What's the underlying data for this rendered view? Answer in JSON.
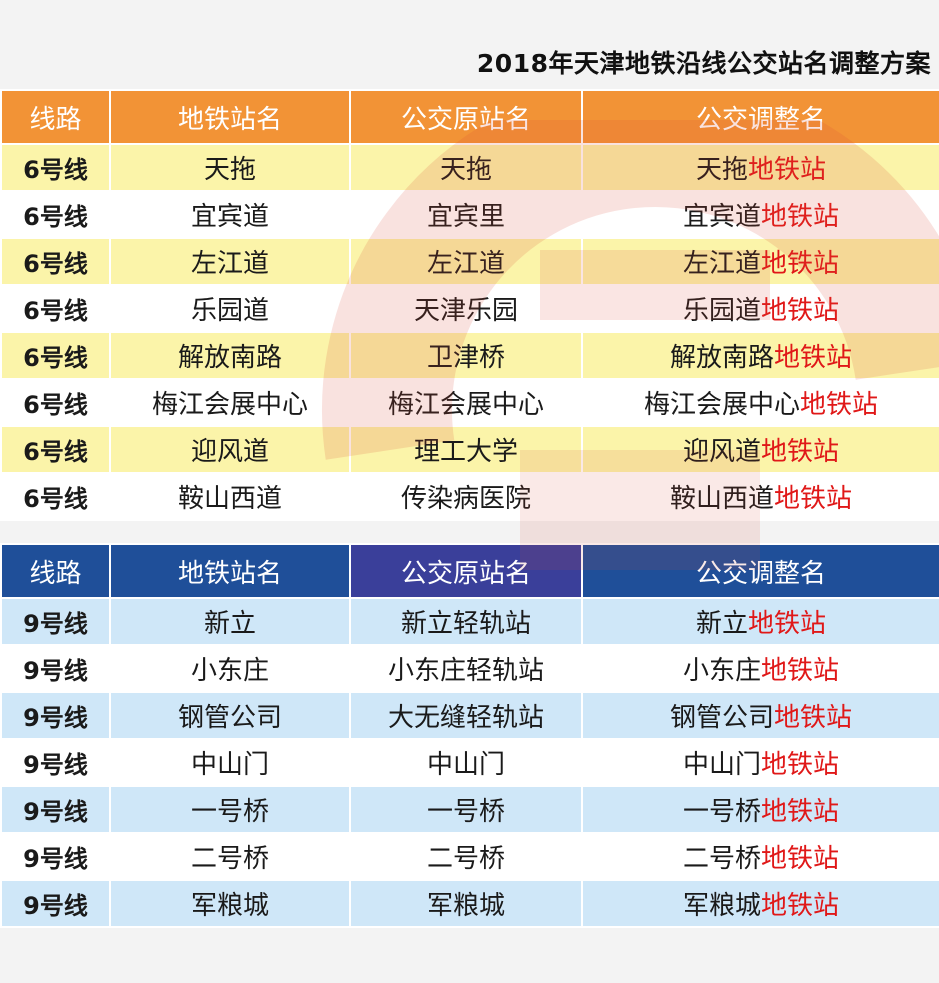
{
  "title": "2018年天津地铁沿线公交站名调整方案",
  "headers": [
    "线路",
    "地铁站名",
    "公交原站名",
    "公交调整名"
  ],
  "suffix": "地铁站",
  "colors": {
    "line6_header": "#f29336",
    "line6_stripe": "#fbf4a9",
    "line9_header": "#1f4f99",
    "line9_stripe": "#cfe7f8",
    "suffix_red": "#e01818"
  },
  "line6": [
    {
      "line": "6号线",
      "metro": "天拖",
      "orig": "天拖",
      "adj": "天拖"
    },
    {
      "line": "6号线",
      "metro": "宜宾道",
      "orig": "宜宾里",
      "adj": "宜宾道"
    },
    {
      "line": "6号线",
      "metro": "左江道",
      "orig": "左江道",
      "adj": "左江道"
    },
    {
      "line": "6号线",
      "metro": "乐园道",
      "orig": "天津乐园",
      "adj": "乐园道"
    },
    {
      "line": "6号线",
      "metro": "解放南路",
      "orig": "卫津桥",
      "adj": "解放南路"
    },
    {
      "line": "6号线",
      "metro": "梅江会展中心",
      "orig": "梅江会展中心",
      "adj": "梅江会展中心"
    },
    {
      "line": "6号线",
      "metro": "迎风道",
      "orig": "理工大学",
      "adj": "迎风道"
    },
    {
      "line": "6号线",
      "metro": "鞍山西道",
      "orig": "传染病医院",
      "adj": "鞍山西道"
    }
  ],
  "line9": [
    {
      "line": "9号线",
      "metro": "新立",
      "orig": "新立轻轨站",
      "adj": "新立"
    },
    {
      "line": "9号线",
      "metro": "小东庄",
      "orig": "小东庄轻轨站",
      "adj": "小东庄"
    },
    {
      "line": "9号线",
      "metro": "钢管公司",
      "orig": "大无缝轻轨站",
      "adj": "钢管公司"
    },
    {
      "line": "9号线",
      "metro": "中山门",
      "orig": "中山门",
      "adj": "中山门"
    },
    {
      "line": "9号线",
      "metro": "一号桥",
      "orig": "一号桥",
      "adj": "一号桥"
    },
    {
      "line": "9号线",
      "metro": "二号桥",
      "orig": "二号桥",
      "adj": "二号桥"
    },
    {
      "line": "9号线",
      "metro": "军粮城",
      "orig": "军粮城",
      "adj": "军粮城"
    }
  ]
}
